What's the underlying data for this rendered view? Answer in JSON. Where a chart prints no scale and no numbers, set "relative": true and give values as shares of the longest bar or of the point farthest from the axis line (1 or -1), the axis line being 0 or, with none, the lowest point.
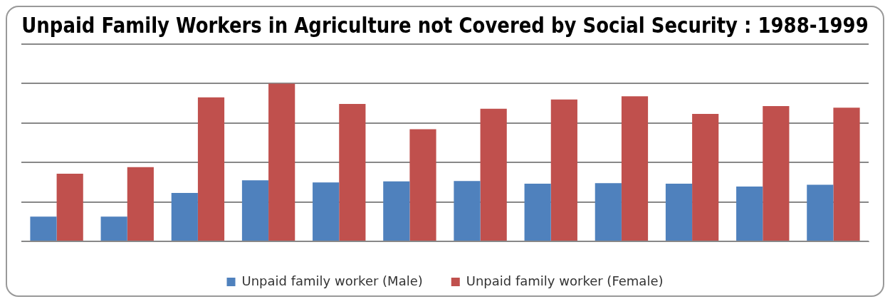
{
  "chart_data": {
    "type": "bar",
    "title": "Unpaid Family Workers in Agriculture not Covered by Social Security : 1988-1999",
    "categories": [
      null,
      null,
      null,
      null,
      null,
      null,
      null,
      null,
      null,
      null,
      null,
      null
    ],
    "relative": true,
    "grid": "y",
    "legend": "bottom",
    "series": [
      {
        "name": "Unpaid family worker (Male)",
        "color": "#4f81bd",
        "values": [
          0.157,
          0.157,
          0.307,
          0.387,
          0.373,
          0.38,
          0.383,
          0.366,
          0.369,
          0.366,
          0.348,
          0.359
        ]
      },
      {
        "name": "Unpaid family worker (Female)",
        "color": "#c0504d",
        "values": [
          0.429,
          0.47,
          0.913,
          1.0,
          0.871,
          0.711,
          0.84,
          0.899,
          0.92,
          0.808,
          0.857,
          0.847
        ]
      }
    ]
  }
}
